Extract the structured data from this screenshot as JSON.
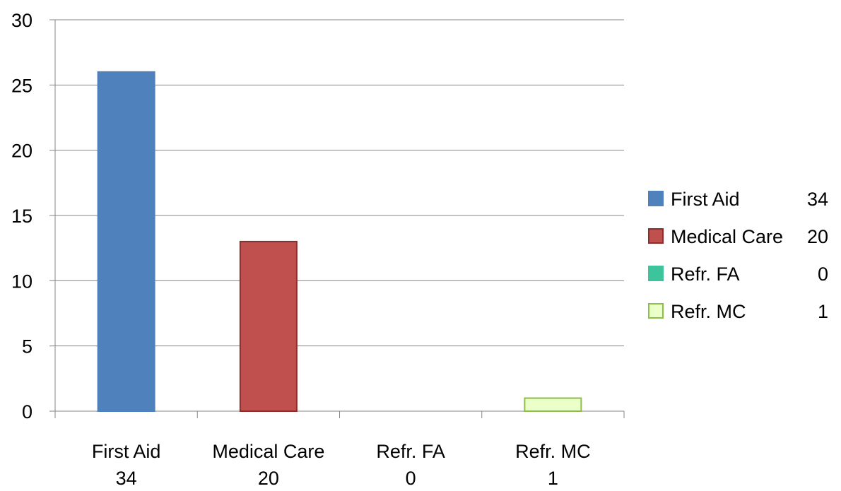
{
  "chart_data": {
    "type": "bar",
    "categories": [
      "First Aid",
      "Medical Care",
      "Refr. FA",
      "Refr. MC"
    ],
    "category_sublabels": [
      "34",
      "20",
      "0",
      "1"
    ],
    "values": [
      26,
      13,
      0,
      1
    ],
    "ylim": [
      0,
      30
    ],
    "yticks": [
      0,
      5,
      10,
      15,
      20,
      25,
      30
    ],
    "grid": true,
    "legend_position": "right",
    "colors": [
      "#4F81BD",
      "#C0504D",
      "#3EC49C",
      "#EBFFC8"
    ],
    "border_colors": [
      "#4F81BD",
      "#8C2F2C",
      "#3EC49C",
      "#8DBE4A"
    ],
    "legend": [
      {
        "label": "First Aid",
        "count": "34"
      },
      {
        "label": "Medical Care",
        "count": "20"
      },
      {
        "label": "Refr. FA",
        "count": "0"
      },
      {
        "label": "Refr. MC",
        "count": "1"
      }
    ],
    "title": "",
    "xlabel": "",
    "ylabel": ""
  }
}
